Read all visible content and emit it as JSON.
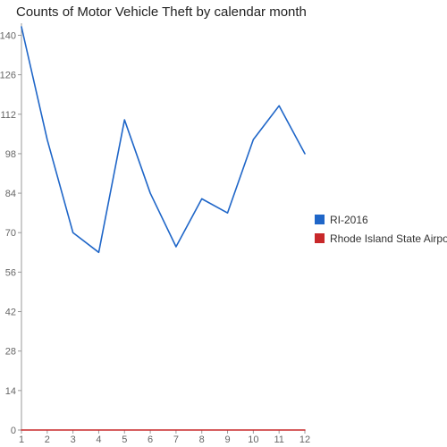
{
  "chart_data": {
    "type": "line",
    "title": "Counts of Motor Vehicle Theft by calendar month",
    "xlabel": "",
    "ylabel": "",
    "x": [
      1,
      2,
      3,
      4,
      5,
      6,
      7,
      8,
      9,
      10,
      11,
      12
    ],
    "xlim": [
      1,
      12
    ],
    "ylim": [
      0,
      143
    ],
    "yticks": [
      0,
      14,
      28,
      42,
      56,
      70,
      84,
      98,
      112,
      126,
      140
    ],
    "grid": false,
    "legend_position": "right",
    "series": [
      {
        "name": "RI-2016",
        "color": "#1f66c8",
        "values": [
          143,
          103,
          70,
          63,
          110,
          84,
          65,
          82,
          77,
          103,
          115,
          98
        ]
      },
      {
        "name": "Rhode Island State Airport",
        "color": "#c8282a",
        "values": [
          0,
          0,
          0,
          0,
          0,
          0,
          0,
          0,
          0,
          0,
          0,
          0
        ]
      }
    ]
  }
}
